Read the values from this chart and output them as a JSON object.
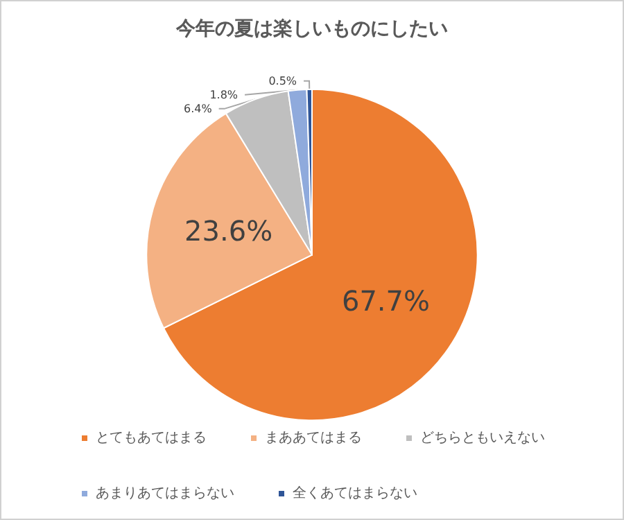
{
  "chart_data": {
    "type": "pie",
    "title": "今年の夏は楽しいものにしたい",
    "categories": [
      "とてもあてはまる",
      "まああてはまる",
      "どちらともいえない",
      "あまりあてはまらない",
      "全くあてはまらない"
    ],
    "values": [
      67.7,
      23.6,
      6.4,
      1.8,
      0.5
    ],
    "colors": [
      "#ed7d31",
      "#f4b183",
      "#bfbfbf",
      "#8faadc",
      "#2f5597"
    ],
    "value_labels": [
      "67.7%",
      "23.6%",
      "6.4%",
      "1.8%",
      "0.5%"
    ],
    "legend": "bottom"
  }
}
